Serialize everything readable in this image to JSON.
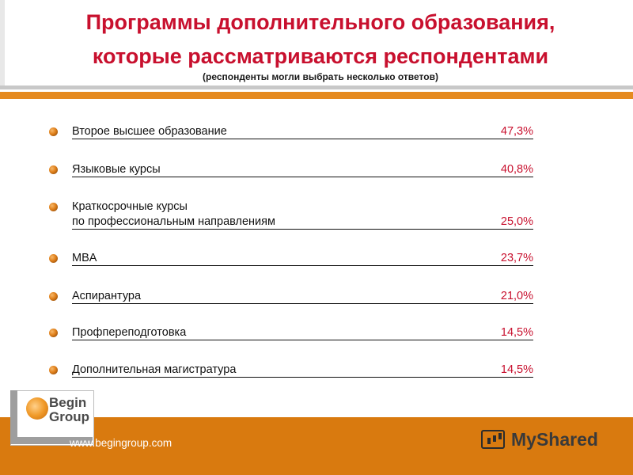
{
  "header": {
    "title_line1": "Программы дополнительного образования,",
    "title_line2": "которые рассматриваются респондентами",
    "subtitle": "(респонденты могли выбрать несколько ответов)"
  },
  "items": [
    {
      "label": "Второе высшее образование",
      "value": "47,3%"
    },
    {
      "label": "Языковые курсы",
      "value": "40,8%"
    },
    {
      "label_line1": "Краткосрочные курсы",
      "label": "по профессиональным направлениям",
      "value": "25,0%"
    },
    {
      "label": "MBA",
      "value": "23,7%"
    },
    {
      "label": "Аспирантура",
      "value": "21,0%"
    },
    {
      "label": "Профпереподготовка",
      "value": "14,5%"
    },
    {
      "label": "Дополнительная магистратура",
      "value": "14,5%"
    }
  ],
  "footer": {
    "logo_line1": "Begin",
    "logo_line2": "Group",
    "website": "www.begingroup.com",
    "watermark": "MyShared"
  },
  "colors": {
    "title": "#c8102e",
    "value": "#c8102e",
    "accent": "#e58a1f",
    "footer": "#d97a0f"
  },
  "icons": {
    "bullet": "orange-sphere-bullet-icon",
    "logo": "begin-group-logo-icon",
    "watermark": "myshared-chart-icon"
  }
}
